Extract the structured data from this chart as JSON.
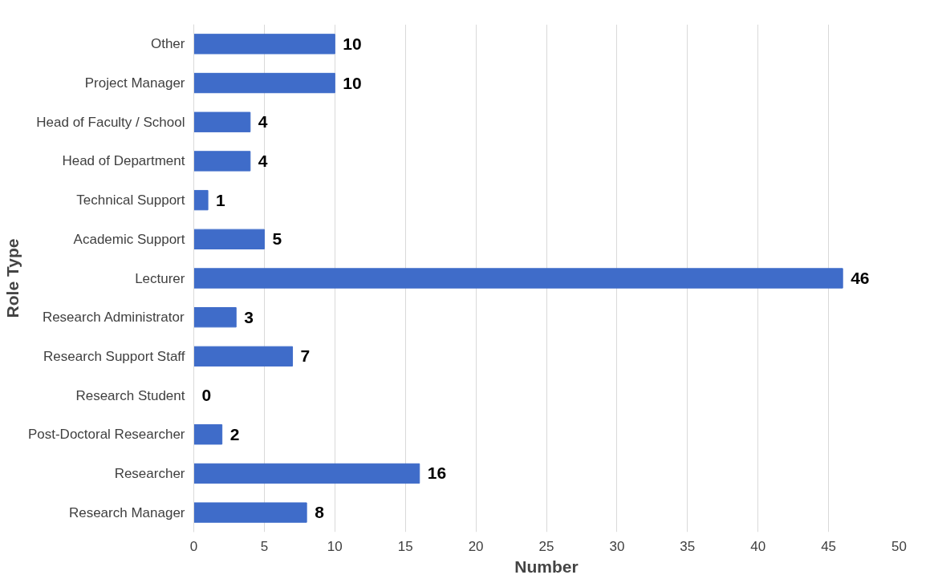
{
  "chart_data": {
    "type": "bar",
    "orientation": "horizontal",
    "xlabel": "Number",
    "ylabel": "Role Type",
    "categories": [
      "Other",
      "Project Manager",
      "Head of Faculty / School",
      "Head of Department",
      "Technical Support",
      "Academic Support",
      "Lecturer",
      "Research Administrator",
      "Research Support Staff",
      "Research Student",
      "Post-Doctoral Researcher",
      "Researcher",
      "Research Manager"
    ],
    "values": [
      10,
      10,
      4,
      4,
      1,
      5,
      46,
      3,
      7,
      0,
      2,
      16,
      8
    ],
    "color": "#3f6cc9",
    "xlim": [
      0,
      50
    ],
    "xticks": [
      0,
      5,
      10,
      15,
      20,
      25,
      30,
      35,
      40,
      45,
      50
    ],
    "grid": "x",
    "data_labels": true
  }
}
